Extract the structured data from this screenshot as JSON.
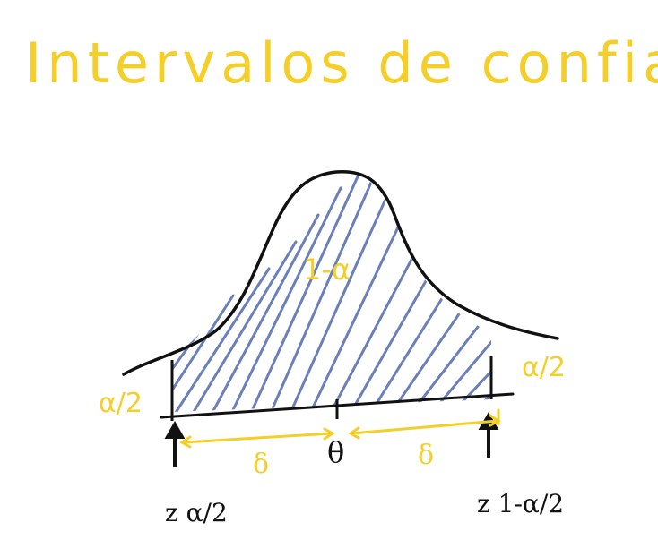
{
  "title": "Intervalos de confianza",
  "labels": {
    "center_area": "1-α",
    "left_tail": "α/2",
    "right_tail": "α/2",
    "center_point": "θ",
    "left_delta": "δ",
    "right_delta": "δ",
    "left_bound": "z α/2",
    "right_bound": "z 1-α/2"
  },
  "colors": {
    "annotation": "#f4cf2a",
    "curve": "#111111",
    "hatch": "#6b7fb8",
    "background": "#ffffff"
  }
}
